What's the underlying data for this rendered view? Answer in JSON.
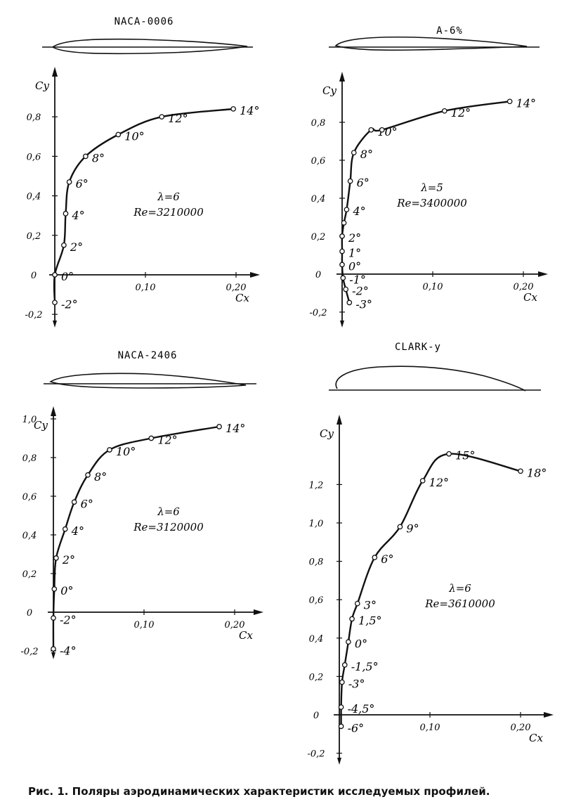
{
  "caption": "Рис. 1. Поляры аэродинамических характеристик исследуемых профилей.",
  "chart_data": [
    {
      "type": "line",
      "title": "NACA-0006",
      "xlabel": "Cx",
      "ylabel": "Cy",
      "xlim": [
        0,
        0.22
      ],
      "ylim": [
        -0.2,
        0.9
      ],
      "x_ticks": [
        "0,10",
        "0,20"
      ],
      "y_ticks": [
        "-0,2",
        "0",
        "0,2",
        "0,4",
        "0,6",
        "0,8"
      ],
      "annotations": [
        "λ=6",
        "Re=3210000"
      ],
      "series": [
        {
          "x": [
            0.0,
            0.0,
            0.01,
            0.012,
            0.016,
            0.034,
            0.07,
            0.118,
            0.197
          ],
          "y": [
            -0.14,
            0.0,
            0.15,
            0.31,
            0.47,
            0.6,
            0.71,
            0.8,
            0.84
          ],
          "labels": [
            "-2°",
            "0°",
            "2°",
            "4°",
            "6°",
            "8°",
            "10°",
            "12°",
            "14°"
          ]
        }
      ]
    },
    {
      "type": "line",
      "title": "A-6%",
      "xlabel": "Cx",
      "ylabel": "Cy",
      "xlim": [
        0,
        0.2
      ],
      "ylim": [
        -0.2,
        0.9
      ],
      "x_ticks": [
        "0,10",
        "0,20"
      ],
      "y_ticks": [
        "-0,2",
        "0",
        "0,2",
        "0,4",
        "0,6",
        "0,8"
      ],
      "annotations": [
        "λ=5",
        "Re=3400000"
      ],
      "series": [
        {
          "x": [
            0.008,
            0.004,
            0.001,
            0.0,
            0.0,
            0.0,
            0.002,
            0.005,
            0.009,
            0.013,
            0.032,
            0.044,
            0.113,
            0.185
          ],
          "y": [
            -0.15,
            -0.08,
            -0.02,
            0.05,
            0.12,
            0.2,
            0.27,
            0.34,
            0.49,
            0.64,
            0.76,
            0.76,
            0.86,
            0.91
          ],
          "labels": [
            "-3°",
            "-2°",
            "-1°",
            "0°",
            "1°",
            "2°",
            "",
            "4°",
            "6°",
            "8°",
            "10°",
            "",
            "12°",
            "14°"
          ]
        }
      ]
    },
    {
      "type": "line",
      "title": "NACA-2406",
      "xlabel": "Cx",
      "ylabel": "Cy",
      "xlim": [
        0,
        0.2
      ],
      "ylim": [
        -0.2,
        1.0
      ],
      "x_ticks": [
        "0,10",
        "0,20"
      ],
      "y_ticks": [
        "-0,2",
        "0",
        "0,2",
        "0,4",
        "0,6",
        "0,8",
        "1,0"
      ],
      "annotations": [
        "λ=6",
        "Re=3120000"
      ],
      "series": [
        {
          "x": [
            0.0,
            0.0,
            0.001,
            0.003,
            0.013,
            0.023,
            0.038,
            0.062,
            0.108,
            0.183
          ],
          "y": [
            -0.19,
            -0.03,
            0.12,
            0.28,
            0.43,
            0.57,
            0.71,
            0.84,
            0.9,
            0.96
          ],
          "labels": [
            "-4°",
            "-2°",
            "0°",
            "2°",
            "4°",
            "6°",
            "8°",
            "10°",
            "12°",
            "14°"
          ]
        }
      ]
    },
    {
      "type": "line",
      "title": "CLARK-y",
      "xlabel": "Cx",
      "ylabel": "Cy",
      "xlim": [
        0,
        0.22
      ],
      "ylim": [
        -0.2,
        1.4
      ],
      "x_ticks": [
        "0,10",
        "0,20"
      ],
      "y_ticks": [
        "-0,2",
        "0",
        "0,2",
        "0,4",
        "0,6",
        "0,8",
        "1,0",
        "1,2"
      ],
      "annotations": [
        "λ=6",
        "Re=3610000"
      ],
      "series": [
        {
          "x": [
            0.002,
            0.002,
            0.003,
            0.006,
            0.01,
            0.014,
            0.02,
            0.039,
            0.067,
            0.092,
            0.121,
            0.2
          ],
          "y": [
            -0.06,
            0.04,
            0.17,
            0.26,
            0.38,
            0.5,
            0.58,
            0.82,
            0.98,
            1.22,
            1.36,
            1.27
          ],
          "labels": [
            "-6°",
            "-4,5°",
            "-3°",
            "-1,5°",
            "0°",
            "1,5°",
            "3°",
            "6°",
            "9°",
            "12°",
            "15°",
            "18°"
          ]
        }
      ]
    }
  ]
}
